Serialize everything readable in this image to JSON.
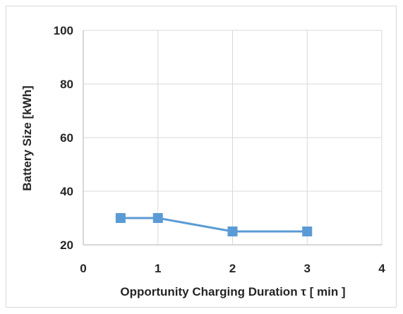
{
  "chart_data": {
    "type": "line",
    "title": "",
    "xlabel": "Opportunity Charging Duration τ [ min ]",
    "ylabel": "Battery Size [kWh]",
    "xlim": [
      0,
      4
    ],
    "ylim": [
      20,
      100
    ],
    "xticks": [
      "0",
      "1",
      "2",
      "3",
      "4"
    ],
    "yticks": [
      "20",
      "40",
      "60",
      "80",
      "100"
    ],
    "grid": true,
    "legend": "none",
    "series": [
      {
        "color": "#5b9bd5",
        "marker": "square",
        "x": [
          0.5,
          1,
          2,
          3
        ],
        "y": [
          30,
          30,
          25,
          25
        ]
      }
    ]
  }
}
